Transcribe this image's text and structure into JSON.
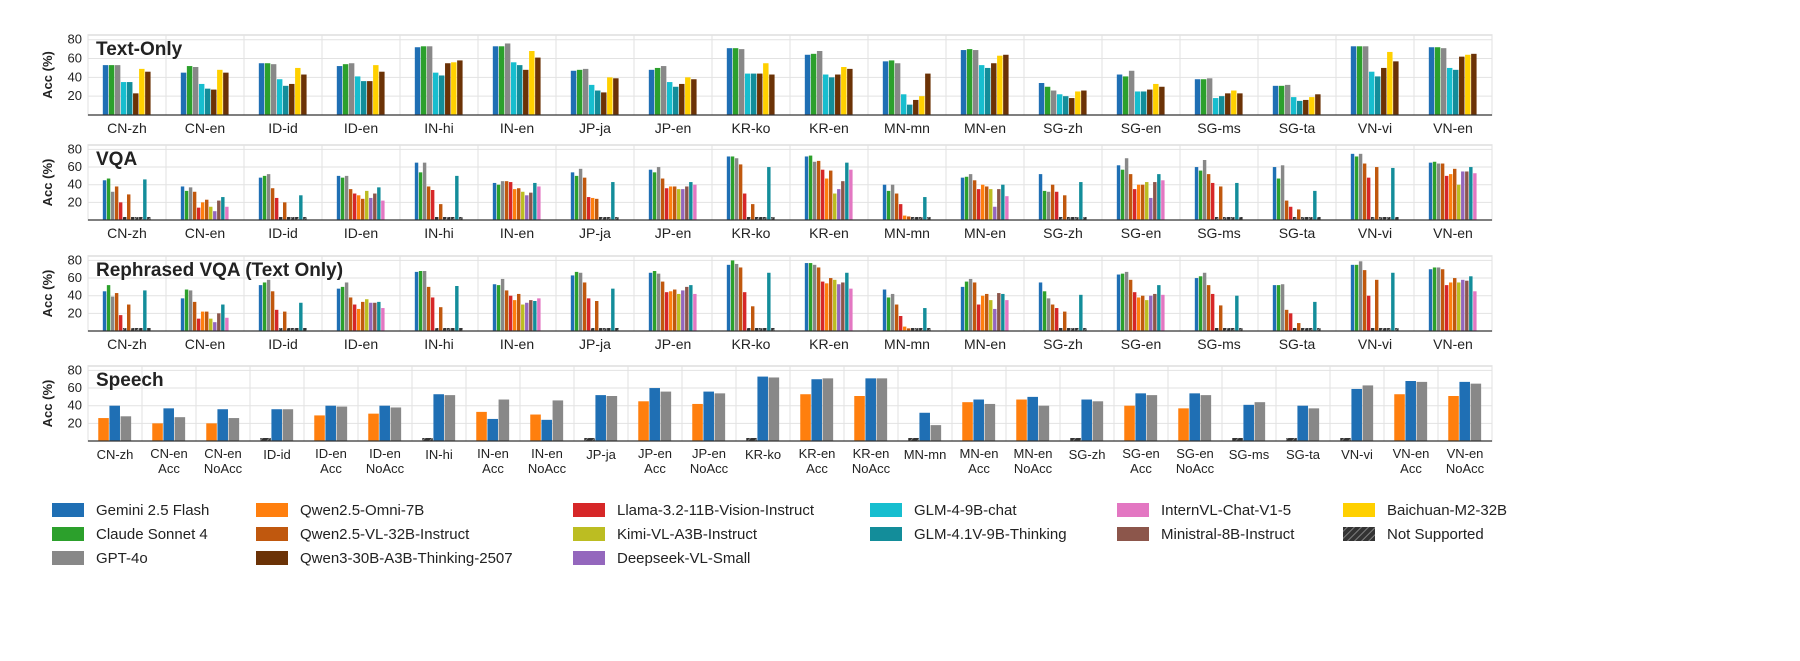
{
  "colors": {
    "Gemini 2.5 Flash": "#1f6fb4",
    "Claude Sonnet 4": "#2ca02c",
    "GPT-4o": "#888888",
    "Qwen2.5-Omni-7B": "#ff7f0e",
    "Qwen2.5-VL-32B-Instruct": "#c0580e",
    "Qwen3-30B-A3B-Thinking-2507": "#6b3206",
    "Llama-3.2-11B-Vision-Instruct": "#d62728",
    "Kimi-VL-A3B-Instruct": "#bcbd22",
    "Deepseek-VL-Small": "#9467bd",
    "GLM-4-9B-chat": "#17becf",
    "GLM-4.1V-9B-Thinking": "#138d9a",
    "InternVL-Chat-V1-5": "#e377c2",
    "Ministral-8B-Instruct": "#8c564b",
    "Baichuan-M2-32B": "#ffd000",
    "Not Supported": "#555555"
  },
  "legend": [
    "Gemini 2.5 Flash",
    "Qwen2.5-Omni-7B",
    "Llama-3.2-11B-Vision-Instruct",
    "GLM-4-9B-chat",
    "InternVL-Chat-V1-5",
    "Baichuan-M2-32B",
    "Claude Sonnet 4",
    "Qwen2.5-VL-32B-Instruct",
    "Kimi-VL-A3B-Instruct",
    "GLM-4.1V-9B-Thinking",
    "Ministral-8B-Instruct",
    "Not Supported",
    "GPT-4o",
    "Qwen3-30B-A3B-Thinking-2507",
    "Deepseek-VL-Small"
  ],
  "chart_data": [
    {
      "type": "bar",
      "title": "Text-Only",
      "ylabel": "Acc (%)",
      "ylim": [
        0,
        85
      ],
      "yticks": [
        20,
        40,
        60,
        80
      ],
      "grid": true,
      "categories": [
        "CN-zh",
        "CN-en",
        "ID-id",
        "ID-en",
        "IN-hi",
        "IN-en",
        "JP-ja",
        "JP-en",
        "KR-ko",
        "KR-en",
        "MN-mn",
        "MN-en",
        "SG-zh",
        "SG-en",
        "SG-ms",
        "SG-ta",
        "VN-vi",
        "VN-en"
      ],
      "series": [
        {
          "name": "Gemini 2.5 Flash",
          "values": [
            53,
            45,
            55,
            52,
            72,
            73,
            47,
            48,
            71,
            64,
            57,
            69,
            34,
            43,
            38,
            31,
            73,
            72
          ]
        },
        {
          "name": "Claude Sonnet 4",
          "values": [
            53,
            52,
            55,
            54,
            73,
            73,
            48,
            50,
            71,
            65,
            58,
            70,
            30,
            41,
            38,
            31,
            73,
            72
          ]
        },
        {
          "name": "GPT-4o",
          "values": [
            53,
            51,
            54,
            55,
            73,
            76,
            49,
            52,
            70,
            68,
            55,
            69,
            26,
            47,
            39,
            32,
            73,
            71
          ]
        },
        {
          "name": "GLM-4-9B-chat",
          "values": [
            35,
            33,
            38,
            41,
            45,
            56,
            32,
            35,
            44,
            43,
            22,
            53,
            22,
            25,
            18,
            19,
            46,
            50
          ]
        },
        {
          "name": "GLM-4.1V-9B-Thinking",
          "values": [
            35,
            28,
            31,
            36,
            42,
            53,
            26,
            30,
            44,
            40,
            11,
            50,
            20,
            25,
            20,
            15,
            41,
            48
          ]
        },
        {
          "name": "Qwen3-30B-A3B-Thinking-2507",
          "values": [
            23,
            27,
            33,
            36,
            55,
            48,
            24,
            33,
            44,
            43,
            16,
            55,
            18,
            27,
            23,
            16,
            50,
            62
          ]
        },
        {
          "name": "Baichuan-M2-32B",
          "values": [
            49,
            48,
            50,
            53,
            56,
            68,
            40,
            40,
            55,
            51,
            20,
            63,
            25,
            33,
            26,
            19,
            67,
            64
          ]
        },
        {
          "name": "Qwen3-30B-A3B-Thinking-2507",
          "values": [
            46,
            45,
            43,
            46,
            58,
            61,
            39,
            38,
            43,
            49,
            44,
            64,
            26,
            30,
            23,
            22,
            57,
            65
          ]
        }
      ]
    },
    {
      "type": "bar",
      "title": "VQA",
      "ylabel": "Acc (%)",
      "ylim": [
        0,
        85
      ],
      "yticks": [
        20,
        40,
        60,
        80
      ],
      "grid": true,
      "categories": [
        "CN-zh",
        "CN-en",
        "ID-id",
        "ID-en",
        "IN-hi",
        "IN-en",
        "JP-ja",
        "JP-en",
        "KR-ko",
        "KR-en",
        "MN-mn",
        "MN-en",
        "SG-zh",
        "SG-en",
        "SG-ms",
        "SG-ta",
        "VN-vi",
        "VN-en"
      ],
      "series": [
        {
          "name": "Gemini 2.5 Flash",
          "values": [
            45,
            38,
            48,
            50,
            65,
            42,
            54,
            57,
            72,
            72,
            40,
            48,
            52,
            62,
            60,
            60,
            75,
            65
          ]
        },
        {
          "name": "Claude Sonnet 4",
          "values": [
            47,
            33,
            50,
            48,
            54,
            40,
            50,
            54,
            72,
            73,
            33,
            49,
            33,
            57,
            56,
            47,
            72,
            66
          ]
        },
        {
          "name": "GPT-4o",
          "values": [
            32,
            37,
            52,
            50,
            65,
            44,
            58,
            60,
            70,
            66,
            40,
            52,
            32,
            70,
            68,
            62,
            75,
            64
          ]
        },
        {
          "name": "Qwen2.5-VL-32B-Instruct",
          "values": [
            38,
            32,
            36,
            35,
            38,
            44,
            48,
            47,
            63,
            67,
            30,
            45,
            40,
            52,
            52,
            22,
            64,
            64
          ]
        },
        {
          "name": "Llama-3.2-11B-Vision-Instruct",
          "values": [
            20,
            14,
            25,
            30,
            34,
            43,
            26,
            36,
            30,
            57,
            18,
            35,
            32,
            35,
            42,
            15,
            48,
            50
          ]
        },
        {
          "name": "Qwen2.5-Omni-7B",
          "values": [
            0,
            20,
            0,
            28,
            0,
            35,
            25,
            38,
            0,
            47,
            5,
            40,
            0,
            40,
            0,
            0,
            0,
            52
          ]
        },
        {
          "name": "Qwen2.5-VL-32B-Instruct",
          "values": [
            29,
            23,
            20,
            24,
            18,
            36,
            24,
            38,
            18,
            56,
            4,
            38,
            28,
            40,
            38,
            12,
            60,
            58
          ]
        },
        {
          "name": "Kimi-VL-A3B-Instruct",
          "values": [
            0,
            15,
            0,
            33,
            0,
            32,
            0,
            35,
            0,
            30,
            0,
            35,
            0,
            43,
            0,
            0,
            0,
            40
          ]
        },
        {
          "name": "Deepseek-VL-Small",
          "values": [
            0,
            10,
            0,
            25,
            0,
            28,
            0,
            35,
            0,
            35,
            0,
            15,
            0,
            25,
            0,
            0,
            0,
            55
          ]
        },
        {
          "name": "Ministral-8B-Instruct",
          "values": [
            0,
            22,
            0,
            30,
            0,
            31,
            0,
            38,
            0,
            44,
            0,
            35,
            0,
            43,
            0,
            0,
            0,
            55
          ]
        },
        {
          "name": "GLM-4.1V-9B-Thinking",
          "values": [
            46,
            26,
            28,
            37,
            50,
            42,
            43,
            43,
            60,
            65,
            26,
            40,
            43,
            52,
            42,
            33,
            59,
            60
          ]
        },
        {
          "name": "InternVL-Chat-V1-5",
          "values": [
            0,
            15,
            0,
            22,
            0,
            38,
            0,
            40,
            0,
            57,
            0,
            27,
            0,
            45,
            0,
            0,
            0,
            53
          ]
        }
      ]
    },
    {
      "type": "bar",
      "title": "Rephrased VQA (Text Only)",
      "ylabel": "Acc (%)",
      "ylim": [
        0,
        85
      ],
      "yticks": [
        20,
        40,
        60,
        80
      ],
      "grid": true,
      "categories": [
        "CN-zh",
        "CN-en",
        "ID-id",
        "ID-en",
        "IN-hi",
        "IN-en",
        "JP-ja",
        "JP-en",
        "KR-ko",
        "KR-en",
        "MN-mn",
        "MN-en",
        "SG-zh",
        "SG-en",
        "SG-ms",
        "SG-ta",
        "VN-vi",
        "VN-en"
      ],
      "series": [
        {
          "name": "Gemini 2.5 Flash",
          "values": [
            45,
            37,
            52,
            48,
            67,
            53,
            63,
            66,
            75,
            77,
            47,
            50,
            55,
            64,
            60,
            52,
            75,
            70
          ]
        },
        {
          "name": "Claude Sonnet 4",
          "values": [
            52,
            47,
            55,
            50,
            68,
            52,
            67,
            68,
            80,
            77,
            38,
            56,
            45,
            65,
            62,
            52,
            75,
            72
          ]
        },
        {
          "name": "GPT-4o",
          "values": [
            39,
            46,
            58,
            55,
            68,
            59,
            66,
            65,
            76,
            75,
            42,
            59,
            37,
            67,
            66,
            53,
            79,
            72
          ]
        },
        {
          "name": "Qwen2.5-VL-32B-Instruct",
          "values": [
            43,
            33,
            45,
            38,
            50,
            46,
            55,
            56,
            72,
            72,
            30,
            55,
            30,
            58,
            52,
            24,
            69,
            70
          ]
        },
        {
          "name": "Llama-3.2-11B-Vision-Instruct",
          "values": [
            18,
            14,
            24,
            30,
            38,
            40,
            37,
            44,
            44,
            56,
            17,
            30,
            26,
            44,
            42,
            20,
            40,
            52
          ]
        },
        {
          "name": "Qwen2.5-Omni-7B",
          "values": [
            0,
            22,
            0,
            25,
            0,
            35,
            0,
            45,
            0,
            54,
            5,
            40,
            0,
            38,
            0,
            0,
            0,
            55
          ]
        },
        {
          "name": "Qwen2.5-VL-32B-Instruct",
          "values": [
            30,
            22,
            22,
            33,
            27,
            42,
            34,
            47,
            28,
            60,
            3,
            42,
            22,
            40,
            29,
            9,
            58,
            60
          ]
        },
        {
          "name": "Kimi-VL-A3B-Instruct",
          "values": [
            0,
            14,
            0,
            36,
            0,
            30,
            0,
            42,
            0,
            58,
            0,
            35,
            0,
            35,
            0,
            0,
            0,
            55
          ]
        },
        {
          "name": "Deepseek-VL-Small",
          "values": [
            0,
            10,
            0,
            32,
            0,
            32,
            0,
            46,
            0,
            53,
            0,
            25,
            0,
            40,
            0,
            0,
            0,
            58
          ]
        },
        {
          "name": "Ministral-8B-Instruct",
          "values": [
            0,
            20,
            0,
            32,
            0,
            35,
            0,
            50,
            0,
            55,
            0,
            43,
            0,
            42,
            0,
            0,
            0,
            57
          ]
        },
        {
          "name": "GLM-4.1V-9B-Thinking",
          "values": [
            46,
            30,
            32,
            33,
            51,
            34,
            48,
            52,
            66,
            66,
            26,
            42,
            41,
            52,
            40,
            33,
            66,
            62
          ]
        },
        {
          "name": "InternVL-Chat-V1-5",
          "values": [
            0,
            15,
            0,
            26,
            0,
            37,
            0,
            42,
            0,
            48,
            0,
            35,
            0,
            41,
            0,
            0,
            0,
            45
          ]
        }
      ]
    },
    {
      "type": "bar",
      "title": "Speech",
      "ylabel": "Acc (%)",
      "ylim": [
        0,
        85
      ],
      "yticks": [
        20,
        40,
        60,
        80
      ],
      "grid": true,
      "categories": [
        "CN-zh",
        "CN-en Acc",
        "CN-en NoAcc",
        "ID-id",
        "ID-en Acc",
        "ID-en NoAcc",
        "IN-hi",
        "IN-en Acc",
        "IN-en NoAcc",
        "JP-ja",
        "JP-en Acc",
        "JP-en NoAcc",
        "KR-ko",
        "KR-en Acc",
        "KR-en NoAcc",
        "MN-mn",
        "MN-en Acc",
        "MN-en NoAcc",
        "SG-zh",
        "SG-en Acc",
        "SG-en NoAcc",
        "SG-ms",
        "SG-ta",
        "VN-vi",
        "VN-en Acc",
        "VN-en NoAcc"
      ],
      "series": [
        {
          "name": "Qwen2.5-Omni-7B",
          "values": [
            26,
            20,
            20,
            0,
            29,
            31,
            0,
            33,
            30,
            0,
            45,
            42,
            0,
            53,
            51,
            0,
            44,
            47,
            0,
            40,
            37,
            0,
            0,
            0,
            53,
            51
          ]
        },
        {
          "name": "Gemini 2.5 Flash",
          "values": [
            40,
            37,
            36,
            36,
            40,
            40,
            53,
            25,
            24,
            52,
            60,
            56,
            73,
            70,
            71,
            32,
            47,
            50,
            47,
            54,
            54,
            41,
            40,
            59,
            68,
            67
          ]
        },
        {
          "name": "GPT-4o",
          "values": [
            28,
            27,
            26,
            36,
            39,
            38,
            52,
            47,
            46,
            51,
            56,
            54,
            72,
            71,
            71,
            18,
            42,
            40,
            45,
            52,
            52,
            44,
            37,
            63,
            67,
            65
          ]
        }
      ]
    }
  ],
  "labels": {
    "not_supported": "Not Supported"
  }
}
